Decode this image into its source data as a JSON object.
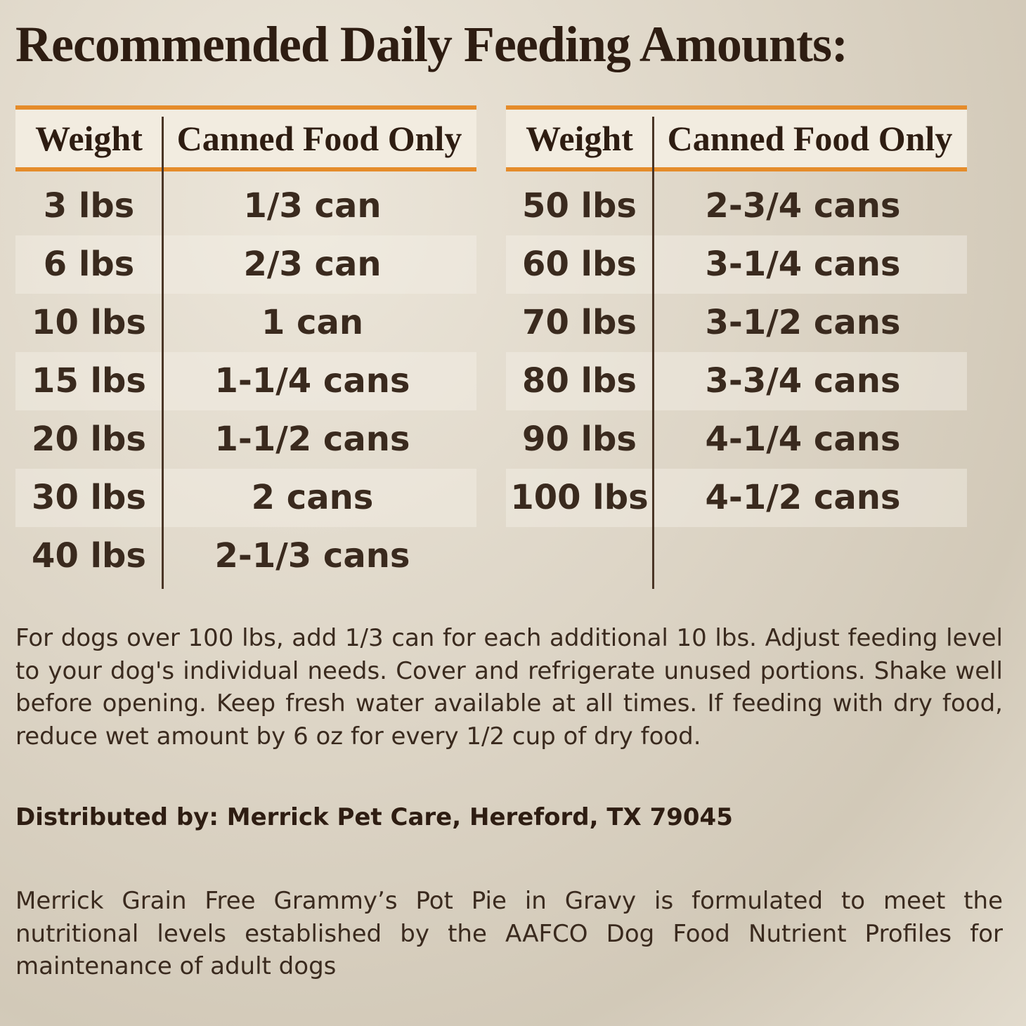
{
  "title": "Recommended Daily Feeding Amounts:",
  "tables": [
    {
      "header": [
        "Weight",
        "Canned Food Only"
      ],
      "rows": [
        [
          "3 lbs",
          "1/3 can"
        ],
        [
          "6 lbs",
          "2/3 can"
        ],
        [
          "10 lbs",
          "1 can"
        ],
        [
          "15 lbs",
          "1-1/4 cans"
        ],
        [
          "20 lbs",
          "1-1/2 cans"
        ],
        [
          "30 lbs",
          "2 cans"
        ],
        [
          "40 lbs",
          "2-1/3 cans"
        ]
      ]
    },
    {
      "header": [
        "Weight",
        "Canned Food Only"
      ],
      "rows": [
        [
          "50 lbs",
          "2-3/4 cans"
        ],
        [
          "60 lbs",
          "3-1/4 cans"
        ],
        [
          "70 lbs",
          "3-1/2 cans"
        ],
        [
          "80 lbs",
          "3-3/4 cans"
        ],
        [
          "90 lbs",
          "4-1/4 cans"
        ],
        [
          "100 lbs",
          "4-1/2 cans"
        ]
      ]
    }
  ],
  "note": "For dogs over 100 lbs, add 1/3 can for each additional 10 lbs. Adjust feeding level to your dog's individual needs. Cover and refrigerate unused portions. Shake well before opening. Keep fresh water available at all times. If feeding with dry food, reduce wet amount by 6 oz for every 1/2 cup of dry food.",
  "distributor": "Distributed by: Merrick Pet Care, Hereford, TX 79045",
  "statement": "Merrick Grain Free Grammy’s Pot Pie in Gravy is formulated to meet the nutritional levels established by the AAFCO Dog Food Nutrient Profiles for maintenance of adult dogs"
}
